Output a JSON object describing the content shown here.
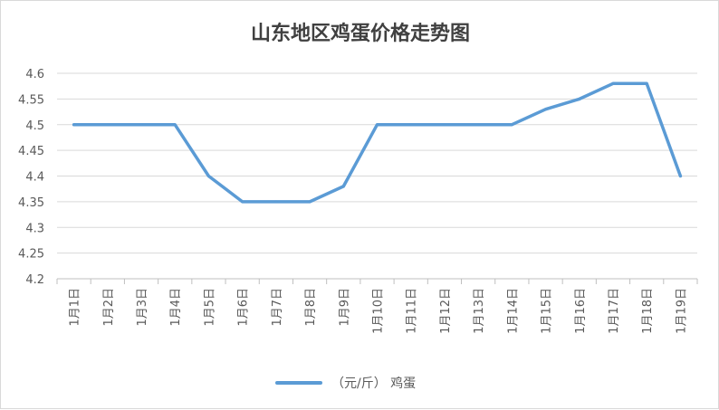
{
  "chart_data": {
    "type": "line",
    "title": "山东地区鸡蛋价格走势图",
    "xlabel": "",
    "ylabel": "",
    "categories": [
      "1月1日",
      "1月2日",
      "1月3日",
      "1月4日",
      "1月5日",
      "1月6日",
      "1月7日",
      "1月8日",
      "1月9日",
      "1月10日",
      "1月11日",
      "1月12日",
      "1月13日",
      "1月14日",
      "1月15日",
      "1月16日",
      "1月17日",
      "1月18日",
      "1月19日"
    ],
    "series": [
      {
        "name": "（元/斤） 鸡蛋",
        "color": "#5b9bd5",
        "values": [
          4.5,
          4.5,
          4.5,
          4.5,
          4.4,
          4.35,
          4.35,
          4.35,
          4.38,
          4.5,
          4.5,
          4.5,
          4.5,
          4.5,
          4.53,
          4.55,
          4.58,
          4.58,
          4.4
        ]
      }
    ],
    "ylim": [
      4.2,
      4.6
    ],
    "yticks": [
      "4.2",
      "4.25",
      "4.3",
      "4.35",
      "4.4",
      "4.45",
      "4.5",
      "4.55",
      "4.6"
    ],
    "grid": true,
    "legend_position": "bottom"
  }
}
